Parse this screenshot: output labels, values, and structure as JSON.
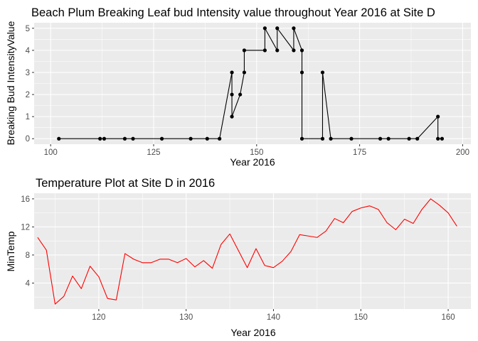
{
  "chart_data": [
    {
      "type": "line",
      "title": "Beach Plum Breaking Leaf bud Intensity value throughout Year 2016 at Site D",
      "xlabel": "Year 2016",
      "ylabel": "Breaking Bud IntensityValue",
      "xlim": [
        96,
        202
      ],
      "ylim": [
        -0.25,
        5.25
      ],
      "xticks": [
        100,
        125,
        150,
        175,
        200
      ],
      "yticks": [
        0,
        1,
        2,
        3,
        4,
        5
      ],
      "grid": true,
      "markers": true,
      "color": "#000000",
      "background": "#ebebeb",
      "series": [
        {
          "x": [
            102,
            112,
            113,
            118,
            120,
            127,
            134,
            138,
            141,
            144,
            144,
            144,
            146,
            147,
            147,
            152,
            152,
            155,
            155,
            159,
            159,
            161,
            161,
            161,
            166,
            166,
            168,
            173,
            180,
            182,
            187,
            189,
            194,
            194,
            195
          ],
          "y": [
            0,
            0,
            0,
            0,
            0,
            0,
            0,
            0,
            0,
            3,
            2,
            1,
            2,
            3,
            4,
            4,
            5,
            4,
            5,
            4,
            5,
            4,
            3,
            0,
            0,
            3,
            0,
            0,
            0,
            0,
            0,
            0,
            1,
            0,
            0
          ]
        }
      ]
    },
    {
      "type": "line",
      "title": "Temperature Plot at Site D in 2016",
      "xlabel": "Year 2016",
      "ylabel": "MinTemp",
      "xlim": [
        112.6,
        162.6
      ],
      "ylim": [
        0.3,
        16.8
      ],
      "xticks": [
        120,
        130,
        140,
        150,
        160
      ],
      "yticks": [
        4,
        8,
        12,
        16
      ],
      "grid": true,
      "markers": false,
      "color": "#ff0000",
      "background": "#ebebeb",
      "series": [
        {
          "x": [
            113,
            114,
            115,
            116,
            117,
            118,
            119,
            120,
            121,
            122,
            123,
            124,
            125,
            126,
            127,
            128,
            129,
            130,
            131,
            132,
            133,
            134,
            135,
            136,
            137,
            138,
            139,
            140,
            141,
            142,
            143,
            144,
            145,
            146,
            147,
            148,
            149,
            150,
            151,
            152,
            153,
            154,
            155,
            156,
            157,
            158,
            159,
            160,
            161
          ],
          "y": [
            10.5,
            8.7,
            1.0,
            2.1,
            5.0,
            3.2,
            6.4,
            4.9,
            1.8,
            1.6,
            8.2,
            7.4,
            6.9,
            6.9,
            7.4,
            7.4,
            6.9,
            7.5,
            6.3,
            7.2,
            6.1,
            9.5,
            11.0,
            8.6,
            6.2,
            8.9,
            6.5,
            6.2,
            7.1,
            8.5,
            10.9,
            10.7,
            10.5,
            11.4,
            13.2,
            12.6,
            14.2,
            14.7,
            15.0,
            14.5,
            12.6,
            11.6,
            13.1,
            12.5,
            14.5,
            16.0,
            15.1,
            14.0,
            12.1
          ]
        }
      ]
    }
  ]
}
